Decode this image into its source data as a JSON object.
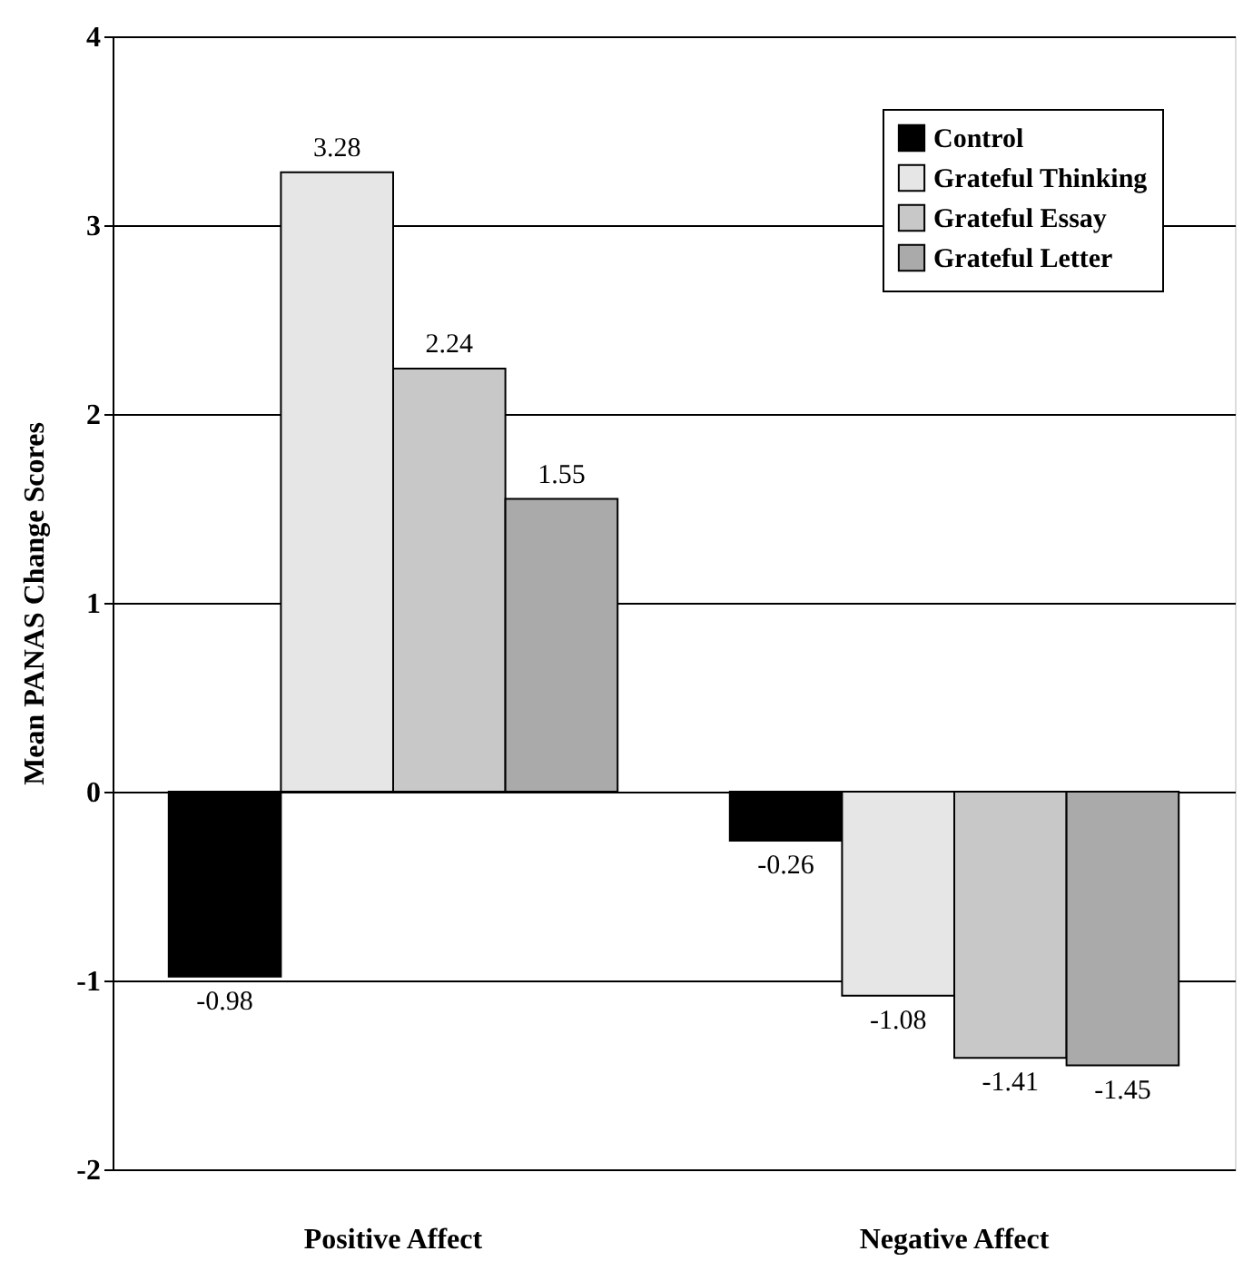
{
  "chart_data": {
    "type": "bar",
    "ylabel": "Mean PANAS Change Scores",
    "categories": [
      "Positive Affect",
      "Negative Affect"
    ],
    "series": [
      {
        "name": "Control",
        "color": "#000000",
        "values": [
          -0.98,
          -0.26
        ]
      },
      {
        "name": "Grateful Thinking",
        "color": "#e6e6e6",
        "values": [
          3.28,
          -1.08
        ]
      },
      {
        "name": "Grateful Essay",
        "color": "#c8c8c8",
        "values": [
          2.24,
          -1.41
        ]
      },
      {
        "name": "Grateful Letter",
        "color": "#aaaaaa",
        "values": [
          1.55,
          -1.45
        ]
      }
    ],
    "ylim": [
      -2,
      4
    ],
    "yticks": [
      -2,
      -1,
      0,
      1,
      2,
      3,
      4
    ],
    "grid": "y",
    "legend": "top right",
    "data_labels": true
  }
}
